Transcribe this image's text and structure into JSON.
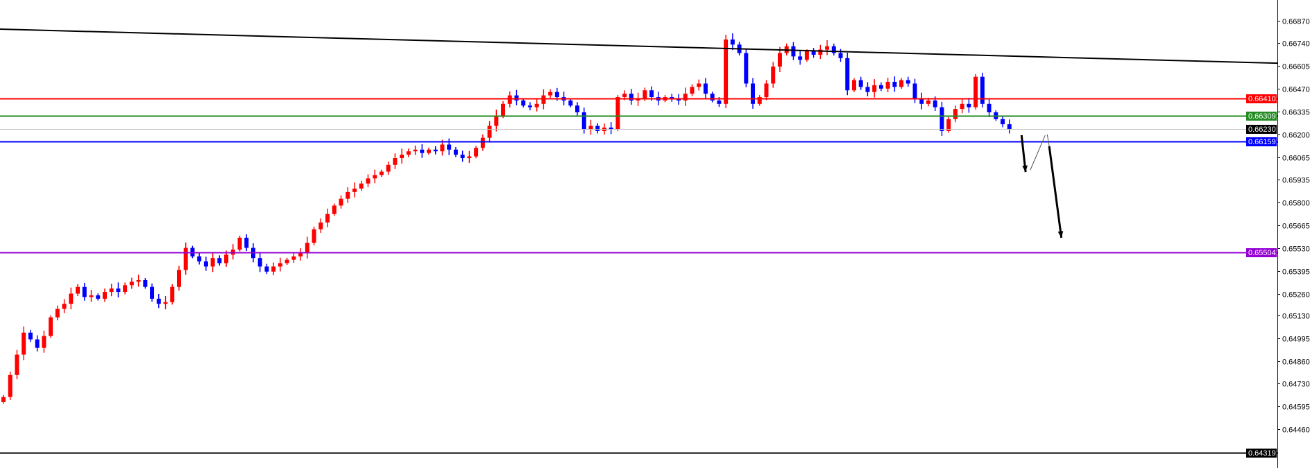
{
  "chart_data": {
    "type": "candlestick",
    "ylim": [
      0.64231,
      0.66993
    ],
    "grid": false,
    "colors": {
      "up": "#ff0000",
      "down": "#0000ff",
      "axis": "#000000",
      "background": "#ffffff"
    },
    "y_ticks": [
      "0.66870",
      "0.66740",
      "0.66605",
      "0.66470",
      "0.66335",
      "0.66200",
      "0.66065",
      "0.65935",
      "0.65800",
      "0.65665",
      "0.65530",
      "0.65395",
      "0.65260",
      "0.65130",
      "0.64995",
      "0.64860",
      "0.64730",
      "0.64595",
      "0.64460"
    ],
    "closes": [
      0.6465,
      0.6478,
      0.649,
      0.6503,
      0.6499,
      0.6494,
      0.6501,
      0.6512,
      0.6517,
      0.652,
      0.6526,
      0.653,
      0.6524,
      0.6525,
      0.6523,
      0.6527,
      0.6529,
      0.6527,
      0.6531,
      0.6533,
      0.6534,
      0.653,
      0.6523,
      0.652,
      0.6521,
      0.653,
      0.654,
      0.6553,
      0.6548,
      0.6545,
      0.6542,
      0.6547,
      0.6544,
      0.6549,
      0.6552,
      0.6559,
      0.6553,
      0.6547,
      0.6542,
      0.6539,
      0.6542,
      0.6544,
      0.6546,
      0.6548,
      0.655,
      0.6556,
      0.6564,
      0.6568,
      0.6573,
      0.6578,
      0.6582,
      0.6586,
      0.6588,
      0.6591,
      0.6594,
      0.6596,
      0.6598,
      0.6602,
      0.6606,
      0.6608,
      0.661,
      0.6611,
      0.6609,
      0.6611,
      0.661,
      0.6614,
      0.6611,
      0.6608,
      0.6606,
      0.6607,
      0.6612,
      0.6618,
      0.6625,
      0.6631,
      0.6638,
      0.6643,
      0.664,
      0.6637,
      0.6636,
      0.6638,
      0.6643,
      0.6645,
      0.6642,
      0.664,
      0.6637,
      0.6633,
      0.6623,
      0.6625,
      0.6622,
      0.6624,
      0.6623,
      0.6642,
      0.6644,
      0.664,
      0.6641,
      0.6646,
      0.6642,
      0.664,
      0.6642,
      0.6641,
      0.664,
      0.6644,
      0.6648,
      0.665,
      0.6644,
      0.664,
      0.6638,
      0.6676,
      0.6673,
      0.6668,
      0.665,
      0.6638,
      0.6642,
      0.665,
      0.666,
      0.6668,
      0.6672,
      0.6666,
      0.6664,
      0.6669,
      0.6667,
      0.667,
      0.6672,
      0.6668,
      0.6665,
      0.6646,
      0.6652,
      0.6648,
      0.6645,
      0.6649,
      0.6647,
      0.6651,
      0.6648,
      0.6652,
      0.665,
      0.6641,
      0.6638,
      0.664,
      0.6636,
      0.6622,
      0.6629,
      0.6635,
      0.6638,
      0.6636,
      0.6654,
      0.6638,
      0.6633,
      0.6629,
      0.6626,
      0.6623
    ],
    "first_open": 0.6462,
    "horizontal_lines": [
      {
        "price": 0.6641,
        "label": "0.66410",
        "color": "#ff0000",
        "tag_text_color": "#ffffff"
      },
      {
        "price": 0.66309,
        "label": "0.66309",
        "color": "#228b22",
        "tag_text_color": "#ffffff"
      },
      {
        "price": 0.6623,
        "label": "0.66230",
        "color": "#c0c0c0",
        "tag_bg": "#000000",
        "tag_text_color": "#ffffff"
      },
      {
        "price": 0.66159,
        "label": "0.66159",
        "color": "#0000ff",
        "tag_text_color": "#ffffff"
      },
      {
        "price": 0.65504,
        "label": "0.65504",
        "color": "#9400d3",
        "tag_text_color": "#ffffff"
      },
      {
        "price": 0.64319,
        "label": "0.64319",
        "color": "#000000",
        "tag_text_color": "#ffffff"
      }
    ],
    "trendline": {
      "start_price": 0.66821,
      "end_price": 0.6662,
      "color": "#000000"
    },
    "annotations": [
      {
        "type": "arrow",
        "from": [
          150.8,
          0.66195
        ],
        "to": [
          151.4,
          0.65978
        ],
        "weight": "bold"
      },
      {
        "type": "line",
        "from": [
          152.1,
          0.6599
        ],
        "to": [
          154.3,
          0.66195
        ],
        "weight": "thin"
      },
      {
        "type": "line",
        "from": [
          154.6,
          0.662
        ],
        "to": [
          154.9,
          0.6613
        ],
        "weight": "thin"
      },
      {
        "type": "arrow",
        "from": [
          154.9,
          0.6613
        ],
        "to": [
          156.7,
          0.6559
        ],
        "weight": "bold"
      }
    ]
  }
}
